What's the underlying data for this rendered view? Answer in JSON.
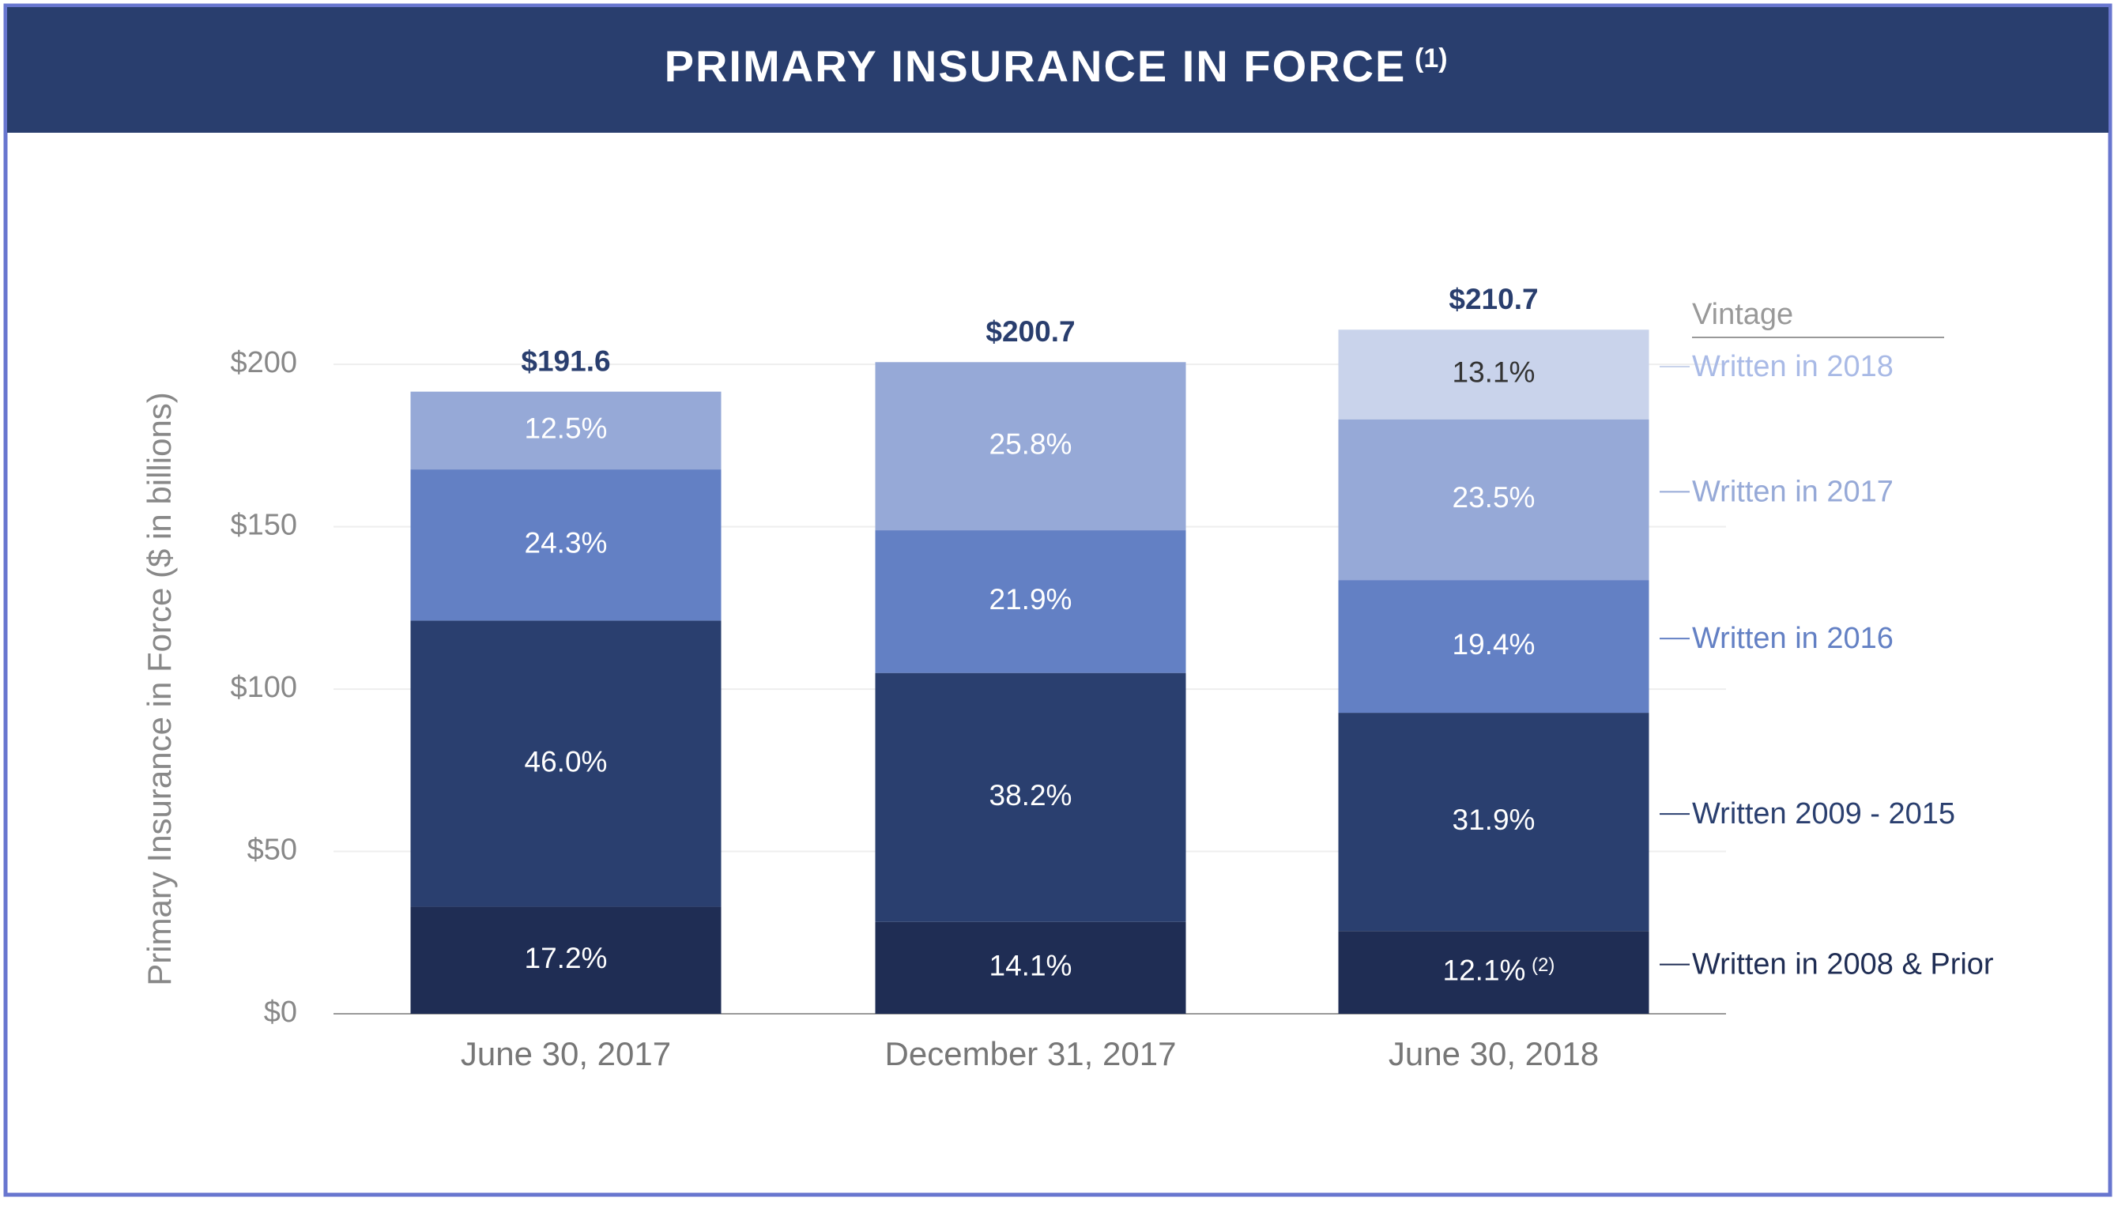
{
  "chart_data": {
    "type": "stacked_bar",
    "title": "PRIMARY INSURANCE IN FORCE",
    "title_footnote": "(1)",
    "y_label": "Primary Insurance in Force ($ in billions)",
    "legend_title": "Vintage",
    "categories": [
      "June 30, 2017",
      "December 31, 2017",
      "June 30, 2018"
    ],
    "series": [
      {
        "name": "Written in 2008 & Prior",
        "color": "#1f2d54",
        "label_color": "#ffffff",
        "values": [
          32.96,
          28.3,
          25.49
        ],
        "value_labels": [
          "17.2%",
          "14.1%",
          "12.1%"
        ]
      },
      {
        "name": "Written 2009 - 2015",
        "color": "#2a3f6f",
        "label_color": "#ffffff",
        "values": [
          88.14,
          76.67,
          67.21
        ],
        "value_labels": [
          "46.0%",
          "38.2%",
          "31.9%"
        ]
      },
      {
        "name": "Written in 2016",
        "color": "#6380c4",
        "label_color": "#ffffff",
        "values": [
          46.56,
          43.95,
          40.88
        ],
        "value_labels": [
          "24.3%",
          "21.9%",
          "19.4%"
        ]
      },
      {
        "name": "Written in 2017",
        "color": "#96a9d7",
        "label_color": "#ffffff",
        "values": [
          23.95,
          51.78,
          49.51
        ],
        "value_labels": [
          "12.5%",
          "25.8%",
          "23.5%"
        ]
      },
      {
        "name": "Written in 2018",
        "color": "#c9d3eb",
        "label_color": "#333333",
        "values": [
          null,
          null,
          27.6
        ],
        "value_labels": [
          null,
          null,
          "13.1%"
        ]
      }
    ],
    "segment_footnote": "(2)",
    "totals": {
      "values": [
        191.6,
        200.7,
        210.7
      ],
      "value_labels": [
        "$191.6",
        "$200.7",
        "$210.7"
      ]
    },
    "ylim": [
      0,
      220
    ],
    "yticks": [
      {
        "value": 0,
        "label": "$0"
      },
      {
        "value": 50,
        "label": "$50"
      },
      {
        "value": 100,
        "label": "$100"
      },
      {
        "value": 150,
        "label": "$150"
      },
      {
        "value": 200,
        "label": "$200"
      }
    ],
    "grid": true
  }
}
